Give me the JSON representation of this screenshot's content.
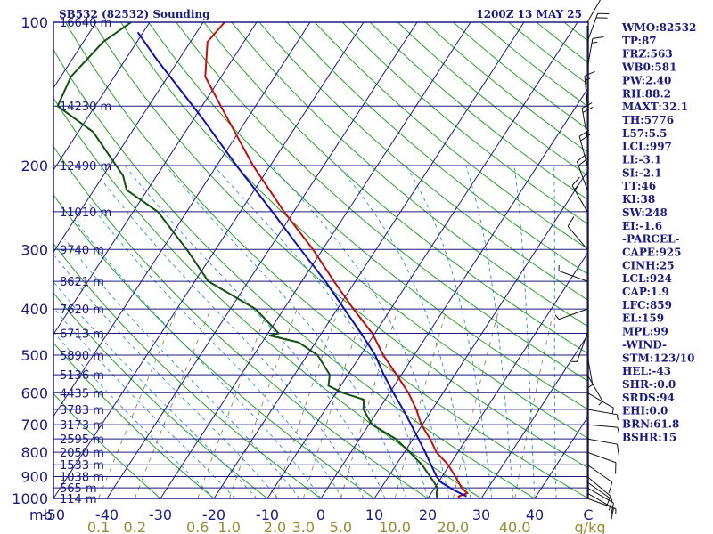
{
  "header": {
    "station": "SB532 (82532) Sounding",
    "time": "1200Z 13 MAY 25"
  },
  "colors": {
    "frame": "#1a1a80",
    "isotherm": "#1a1a80",
    "dry_adiabat": "#2aa02a",
    "moist_adiabat": "#2a8fd0",
    "mixing_ratio": "#7a7a40",
    "temperature": "#c01010",
    "dewpoint": "#105010",
    "parcel": "#1010b0",
    "barbs": "#111111"
  },
  "axis": {
    "mb_label": "mb",
    "pressure_labels": [
      "100",
      "200",
      "300",
      "400",
      "500",
      "600",
      "700",
      "800",
      "900",
      "1000"
    ],
    "temp_labels": [
      "-50",
      "-40",
      "-30",
      "-20",
      "-10",
      "0",
      "10",
      "20",
      "30",
      "40",
      "C"
    ],
    "mixing_labels": [
      "0.1",
      "0.2",
      "0.6",
      "1.0",
      "2.0",
      "3.0",
      "5.0",
      "10.0",
      "20.0",
      "40.0",
      "g/kg"
    ]
  },
  "chart_data": {
    "type": "line",
    "title": "SB532 (82532) Sounding",
    "subtitle": "1200Z 13 MAY 25",
    "xlabel": "C",
    "ylabel": "mb",
    "xlim": [
      -50,
      50
    ],
    "ylim": [
      1000,
      100
    ],
    "y_scale": "log",
    "skew_degC_per_decade_of_pressure": 58,
    "heights": [
      {
        "p": 100,
        "label": "16640 m"
      },
      {
        "p": 150,
        "label": "14230 m"
      },
      {
        "p": 200,
        "label": "12490 m"
      },
      {
        "p": 250,
        "label": "11010 m"
      },
      {
        "p": 300,
        "label": "9740 m"
      },
      {
        "p": 350,
        "label": "8621 m"
      },
      {
        "p": 400,
        "label": "7620 m"
      },
      {
        "p": 450,
        "label": "6713 m"
      },
      {
        "p": 500,
        "label": "5890 m"
      },
      {
        "p": 550,
        "label": "5136 m"
      },
      {
        "p": 600,
        "label": "4435 m"
      },
      {
        "p": 650,
        "label": "3783 m"
      },
      {
        "p": 700,
        "label": "3173 m"
      },
      {
        "p": 750,
        "label": "2595 m"
      },
      {
        "p": 800,
        "label": "2050 m"
      },
      {
        "p": 850,
        "label": "1533 m"
      },
      {
        "p": 900,
        "label": "1038 m"
      },
      {
        "p": 950,
        "label": "565 m"
      },
      {
        "p": 1000,
        "label": "114 m"
      }
    ],
    "series": [
      {
        "name": "temperature",
        "points": [
          [
            1002,
            26.0
          ],
          [
            990,
            25.5
          ],
          [
            975,
            26.8
          ],
          [
            950,
            25.0
          ],
          [
            925,
            23.8
          ],
          [
            900,
            22.5
          ],
          [
            850,
            19.7
          ],
          [
            800,
            16.0
          ],
          [
            750,
            13.2
          ],
          [
            700,
            9.8
          ],
          [
            650,
            7.0
          ],
          [
            600,
            3.5
          ],
          [
            550,
            -0.9
          ],
          [
            500,
            -5.8
          ],
          [
            450,
            -10.5
          ],
          [
            400,
            -17.0
          ],
          [
            350,
            -24.0
          ],
          [
            300,
            -31.8
          ],
          [
            250,
            -41.8
          ],
          [
            200,
            -53.2
          ],
          [
            150,
            -66.5
          ],
          [
            130,
            -73.0
          ],
          [
            110,
            -76.8
          ],
          [
            100,
            -76.0
          ]
        ]
      },
      {
        "name": "dewpoint",
        "points": [
          [
            1002,
            21.8
          ],
          [
            975,
            21.0
          ],
          [
            950,
            20.5
          ],
          [
            925,
            19.2
          ],
          [
            900,
            17.8
          ],
          [
            850,
            14.8
          ],
          [
            800,
            11.0
          ],
          [
            750,
            6.8
          ],
          [
            700,
            0.6
          ],
          [
            650,
            -2.9
          ],
          [
            620,
            -4.0
          ],
          [
            600,
            -8.8
          ],
          [
            580,
            -12.3
          ],
          [
            550,
            -13.4
          ],
          [
            500,
            -18.1
          ],
          [
            470,
            -23.2
          ],
          [
            455,
            -29.4
          ],
          [
            450,
            -28.0
          ],
          [
            400,
            -35.3
          ],
          [
            350,
            -47.5
          ],
          [
            300,
            -55.4
          ],
          [
            250,
            -65.4
          ],
          [
            225,
            -73.9
          ],
          [
            210,
            -76.3
          ],
          [
            200,
            -78.8
          ],
          [
            170,
            -87.2
          ],
          [
            150,
            -97.0
          ],
          [
            130,
            -98.1
          ],
          [
            110,
            -96.3
          ],
          [
            100,
            -93.5
          ]
        ]
      },
      {
        "name": "parcel",
        "points": [
          [
            990,
            27.0
          ],
          [
            960,
            23.8
          ],
          [
            924,
            20.4
          ],
          [
            900,
            19.0
          ],
          [
            850,
            16.5
          ],
          [
            800,
            13.9
          ],
          [
            750,
            11.0
          ],
          [
            700,
            7.9
          ],
          [
            650,
            4.5
          ],
          [
            600,
            0.7
          ],
          [
            550,
            -3.3
          ],
          [
            500,
            -7.3
          ],
          [
            450,
            -12.6
          ],
          [
            400,
            -18.7
          ],
          [
            350,
            -25.6
          ],
          [
            300,
            -34.1
          ],
          [
            250,
            -44.0
          ],
          [
            200,
            -56.3
          ],
          [
            159,
            -68.5
          ],
          [
            120,
            -84.0
          ],
          [
            105,
            -91.0
          ]
        ]
      }
    ],
    "wind_barbs": [
      {
        "p": 1000,
        "dir": 110,
        "spd": 5
      },
      {
        "p": 975,
        "dir": 120,
        "spd": 10
      },
      {
        "p": 950,
        "dir": 120,
        "spd": 10
      },
      {
        "p": 925,
        "dir": 125,
        "spd": 10
      },
      {
        "p": 900,
        "dir": 130,
        "spd": 10
      },
      {
        "p": 850,
        "dir": 125,
        "spd": 10
      },
      {
        "p": 800,
        "dir": 110,
        "spd": 10
      },
      {
        "p": 750,
        "dir": 100,
        "spd": 10
      },
      {
        "p": 700,
        "dir": 95,
        "spd": 5
      },
      {
        "p": 650,
        "dir": 100,
        "spd": 5
      },
      {
        "p": 600,
        "dir": 120,
        "spd": 5
      },
      {
        "p": 550,
        "dir": 150,
        "spd": 5
      },
      {
        "p": 500,
        "dir": 170,
        "spd": 5
      },
      {
        "p": 450,
        "dir": 200,
        "spd": 5
      },
      {
        "p": 400,
        "dir": 250,
        "spd": 5
      },
      {
        "p": 350,
        "dir": 290,
        "spd": 5
      },
      {
        "p": 300,
        "dir": 320,
        "spd": 10
      },
      {
        "p": 250,
        "dir": 330,
        "spd": 15
      },
      {
        "p": 225,
        "dir": 340,
        "spd": 20
      },
      {
        "p": 200,
        "dir": 345,
        "spd": 20
      },
      {
        "p": 175,
        "dir": 350,
        "spd": 20
      },
      {
        "p": 150,
        "dir": 355,
        "spd": 15
      },
      {
        "p": 125,
        "dir": 10,
        "spd": 15
      },
      {
        "p": 110,
        "dir": 20,
        "spd": 20
      },
      {
        "p": 100,
        "dir": 30,
        "spd": 5
      }
    ],
    "mixing_ratio_values": [
      0.1,
      0.2,
      0.6,
      1.0,
      2.0,
      3.0,
      5.0,
      10.0,
      20.0,
      40.0
    ]
  },
  "indices": [
    "WMO:82532",
    "TP:87",
    "FRZ:563",
    "WB0:581",
    "PW:2.40",
    "RH:88.2",
    "MAXT:32.1",
    "TH:5776",
    "L57:5.5",
    "LCL:997",
    "LI:-3.1",
    "SI:-2.1",
    "TT:46",
    "KI:38",
    "SW:248",
    "EI:-1.6",
    "-PARCEL-",
    "CAPE:925",
    "CINH:25",
    "LCL:924",
    "CAP:1.9",
    "LFC:859",
    "EL:159",
    "MPL:99",
    "-WIND-",
    "STM:123/10",
    "HEL:-43",
    "SHR-:0.0",
    "SRDS:94",
    "EHI:0.0",
    "BRN:61.8",
    "BSHR:15"
  ]
}
